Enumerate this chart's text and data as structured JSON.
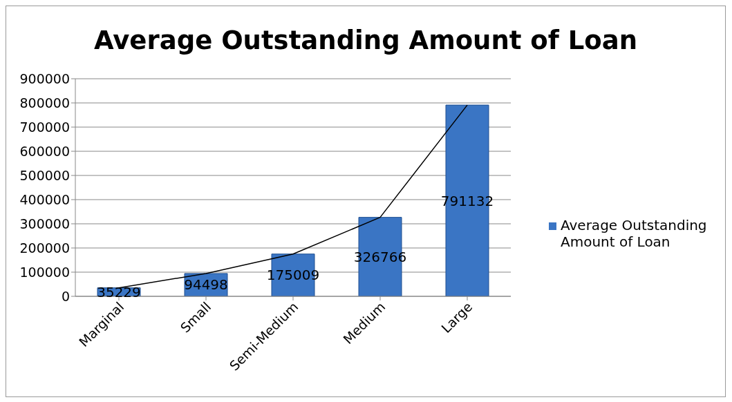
{
  "chart_data": {
    "type": "bar",
    "title": "Average Outstanding Amount of Loan",
    "categories": [
      "Marginal",
      "Small",
      "Semi-Medium",
      "Medium",
      "Large"
    ],
    "series": [
      {
        "name": "Average Outstanding Amount of Loan",
        "color": "#3a75c4",
        "values": [
          35229,
          94498,
          175009,
          326766,
          791132
        ],
        "value_labels": [
          "35229",
          "94498",
          "175009",
          "326766",
          "791132"
        ]
      },
      {
        "type": "line",
        "color": "#000000",
        "values": [
          35229,
          94498,
          175009,
          326766,
          791132
        ]
      }
    ],
    "ylim": [
      0,
      900000
    ],
    "yticks": [
      0,
      100000,
      200000,
      300000,
      400000,
      500000,
      600000,
      700000,
      800000,
      900000
    ],
    "grid": "y",
    "legend": "right",
    "marker": "none",
    "line_style": "solid"
  }
}
